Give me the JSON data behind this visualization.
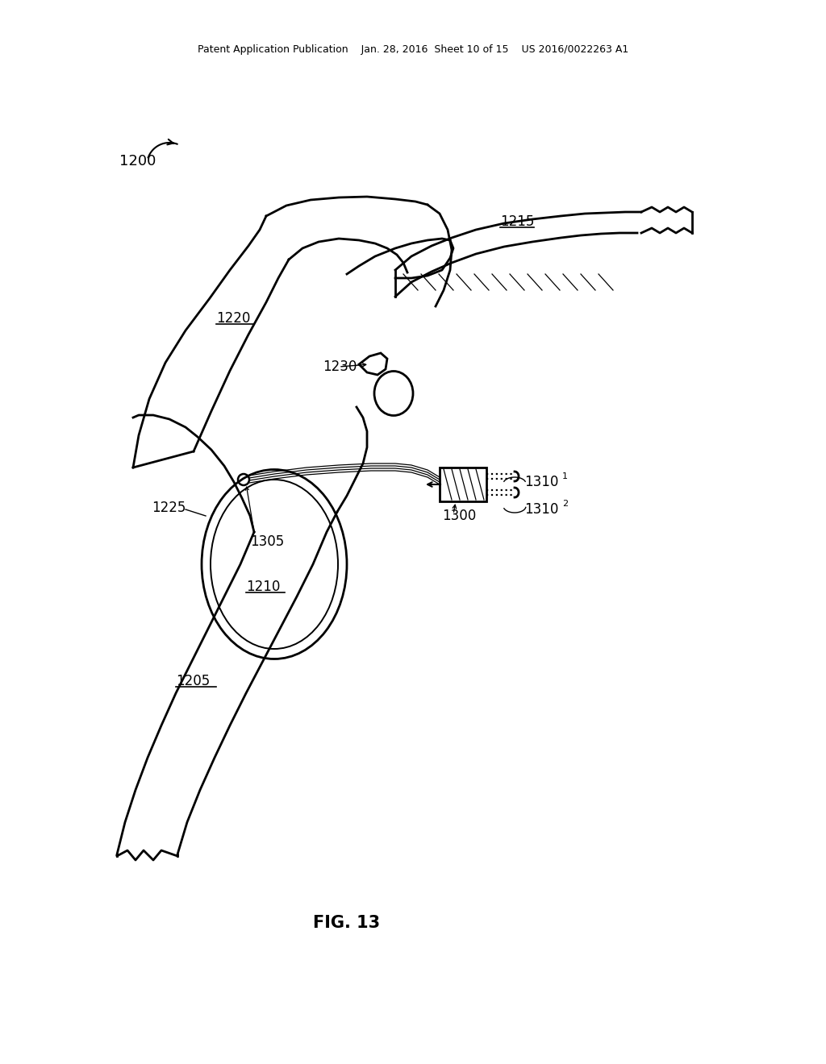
{
  "header": "Patent Application Publication    Jan. 28, 2016  Sheet 10 of 15    US 2016/0022263 A1",
  "fig_label": "FIG. 13",
  "bg": "#ffffff",
  "lc": "#000000"
}
